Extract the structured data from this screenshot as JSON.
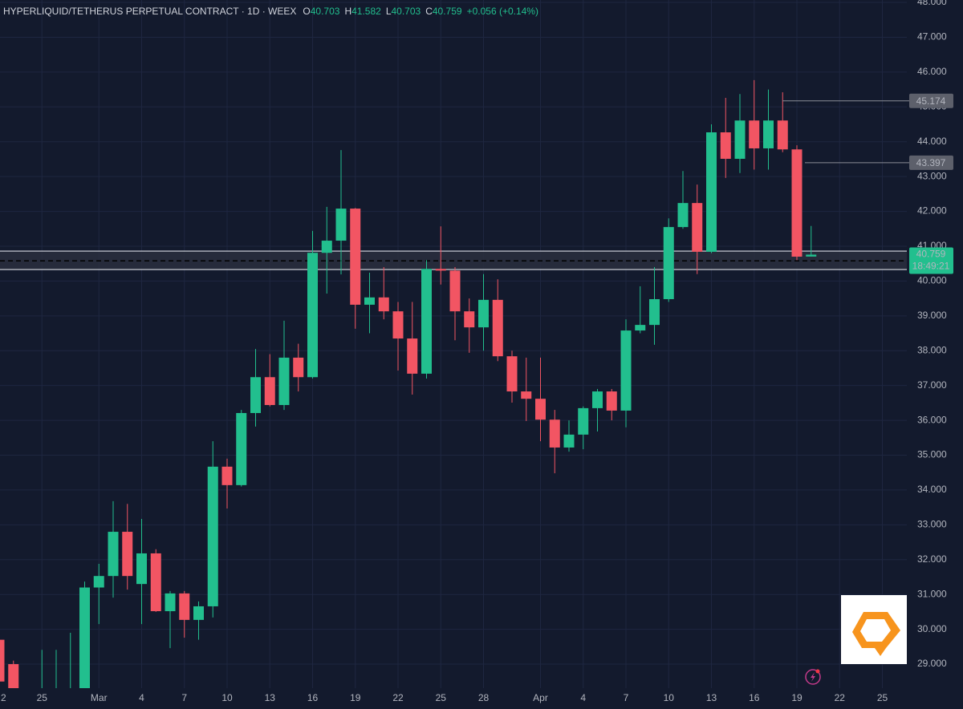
{
  "chart_data": {
    "type": "candlestick",
    "title": "HYPERLIQUID/TETHERUS PERPETUAL CONTRACT · 1D · WEEX",
    "ohlc_labels": [
      "O",
      "H",
      "L",
      "C"
    ],
    "change": "+0.056 (+0.14%)",
    "countdown": "18:49:21",
    "categories": [
      "2",
      null,
      null,
      "25",
      null,
      null,
      null,
      "Mar",
      null,
      null,
      "4",
      null,
      null,
      "7",
      null,
      null,
      "10",
      null,
      null,
      "13",
      null,
      null,
      "16",
      null,
      null,
      "19",
      null,
      null,
      "22",
      null,
      null,
      "25",
      null,
      null,
      "28",
      null,
      null,
      null,
      "Apr",
      null,
      null,
      "4",
      null,
      null,
      "7",
      null,
      null,
      "10",
      null,
      null,
      "13",
      null,
      null,
      "16",
      null,
      null,
      "19",
      null,
      null,
      "22",
      null,
      null,
      "25"
    ],
    "open": [
      29.7,
      29.0,
      28.2,
      27.9,
      28.0,
      28.1,
      28.3,
      31.2,
      31.53,
      32.8,
      31.3,
      32.18,
      30.52,
      31.03,
      30.27,
      30.66,
      34.67,
      34.14,
      36.21,
      37.24,
      36.44,
      37.8,
      37.24,
      40.81,
      41.16,
      42.08,
      39.32,
      39.53,
      39.13,
      38.35,
      37.34,
      40.35,
      40.3,
      39.13,
      38.67,
      39.46,
      37.84,
      36.83,
      36.62,
      36.02,
      35.22,
      35.59,
      36.35,
      36.83,
      36.28,
      38.58,
      38.74,
      39.48,
      41.55,
      42.24,
      40.84,
      44.27,
      43.51,
      44.61,
      43.81,
      44.61,
      43.78,
      40.703,
      null,
      null,
      null,
      null,
      null
    ],
    "high": [
      29.8,
      29.1,
      28.3,
      29.41,
      29.41,
      29.9,
      31.37,
      31.88,
      33.68,
      33.6,
      33.17,
      32.3,
      31.1,
      31.1,
      30.8,
      35.4,
      34.9,
      36.3,
      38.05,
      37.9,
      38.86,
      38.2,
      41.44,
      42.13,
      43.76,
      42.1,
      40.24,
      40.4,
      39.4,
      39.4,
      40.6,
      41.57,
      40.4,
      39.5,
      40.2,
      40.05,
      38.0,
      37.8,
      37.8,
      36.3,
      36.0,
      36.4,
      36.9,
      36.9,
      38.9,
      39.85,
      40.4,
      41.8,
      43.16,
      42.77,
      44.5,
      45.26,
      45.37,
      45.77,
      45.5,
      45.42,
      43.9,
      41.582,
      null,
      null,
      null,
      null,
      null
    ],
    "low": [
      28.2,
      28.2,
      27.8,
      27.7,
      27.8,
      27.9,
      28.1,
      30.15,
      30.91,
      31.14,
      30.15,
      30.5,
      29.46,
      29.76,
      29.7,
      30.34,
      33.47,
      34.1,
      35.82,
      36.4,
      36.3,
      36.83,
      37.2,
      39.64,
      40.19,
      38.63,
      38.5,
      38.9,
      37.43,
      36.74,
      37.2,
      39.9,
      38.3,
      37.94,
      38.0,
      37.7,
      36.51,
      35.98,
      35.4,
      34.48,
      35.1,
      35.17,
      35.68,
      36.0,
      35.8,
      38.5,
      38.17,
      39.4,
      41.5,
      40.2,
      40.8,
      42.96,
      43.1,
      43.2,
      43.2,
      43.7,
      40.6,
      40.703,
      null,
      null,
      null,
      null,
      null
    ],
    "close": [
      28.5,
      28.3,
      28.0,
      28.2,
      28.2,
      28.3,
      31.2,
      31.53,
      32.8,
      31.53,
      32.18,
      30.52,
      31.03,
      30.27,
      30.66,
      34.67,
      34.14,
      36.21,
      37.24,
      36.44,
      37.8,
      37.24,
      40.81,
      41.16,
      42.08,
      39.32,
      39.53,
      39.13,
      38.35,
      37.34,
      40.35,
      40.3,
      39.13,
      38.67,
      39.46,
      37.84,
      36.83,
      36.62,
      36.02,
      35.22,
      35.59,
      36.35,
      36.83,
      36.28,
      38.58,
      38.74,
      39.48,
      41.55,
      42.24,
      40.84,
      44.27,
      43.51,
      44.61,
      43.81,
      44.61,
      43.78,
      40.7,
      40.759,
      null,
      null,
      null,
      null,
      null
    ],
    "up_color": "#22bf8e",
    "down_color": "#f25563",
    "ylim": [
      28.31,
      48.07
    ],
    "yticks": [
      {
        "value": 48,
        "label": "48.000"
      },
      {
        "value": 47,
        "label": "47.000"
      },
      {
        "value": 46,
        "label": "46.000"
      },
      {
        "value": 45,
        "label": "45.000"
      },
      {
        "value": 44,
        "label": "44.000"
      },
      {
        "value": 43,
        "label": "43.000"
      },
      {
        "value": 42,
        "label": "42.000"
      },
      {
        "value": 41,
        "label": "41.000"
      },
      {
        "value": 40,
        "label": "40.000"
      },
      {
        "value": 39,
        "label": "39.000"
      },
      {
        "value": 38,
        "label": "38.000"
      },
      {
        "value": 37,
        "label": "37.000"
      },
      {
        "value": 36,
        "label": "36.000"
      },
      {
        "value": 35,
        "label": "35.000"
      },
      {
        "value": 34,
        "label": "34.000"
      },
      {
        "value": 33,
        "label": "33.000"
      },
      {
        "value": 32,
        "label": "32.000"
      },
      {
        "value": 31,
        "label": "31.000"
      },
      {
        "value": 30,
        "label": "30.000"
      },
      {
        "value": 29,
        "label": "29.000"
      }
    ],
    "price_lines": [
      45.174,
      43.397
    ],
    "zone": {
      "top": 40.86,
      "mid": 40.58,
      "bottom": 40.33
    },
    "grid": true
  }
}
